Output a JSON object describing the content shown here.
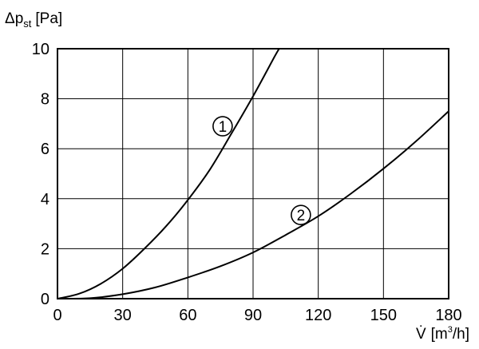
{
  "chart_data": {
    "type": "line",
    "ylabel": {
      "symbol": "Δp",
      "subscript": "st",
      "unit": "[Pa]"
    },
    "xlabel": {
      "symbol": "V̇",
      "unit_pre": "[m",
      "unit_sup": "3",
      "unit_post": "/h]"
    },
    "xlim": [
      0,
      180
    ],
    "ylim": [
      0,
      10
    ],
    "xticks": [
      0,
      30,
      60,
      90,
      120,
      150,
      180
    ],
    "yticks": [
      0,
      2,
      4,
      6,
      8,
      10
    ],
    "grid": true,
    "series": [
      {
        "label": "1",
        "x": [
          0,
          10,
          20,
          30,
          40,
          50,
          60,
          70,
          80,
          90,
          100,
          102
        ],
        "y": [
          0,
          0.2,
          0.6,
          1.2,
          2.0,
          2.9,
          3.95,
          5.15,
          6.6,
          8.1,
          9.7,
          10.0
        ]
      },
      {
        "label": "2",
        "x": [
          0,
          15,
          30,
          45,
          60,
          75,
          90,
          105,
          120,
          135,
          150,
          165,
          180
        ],
        "y": [
          0,
          0.02,
          0.18,
          0.45,
          0.85,
          1.3,
          1.85,
          2.55,
          3.3,
          4.2,
          5.2,
          6.3,
          7.5
        ]
      }
    ],
    "annotations": [
      {
        "text": "1",
        "series": "1",
        "x": 76,
        "y": 6.9
      },
      {
        "text": "2",
        "series": "2",
        "x": 112,
        "y": 3.35
      }
    ]
  }
}
